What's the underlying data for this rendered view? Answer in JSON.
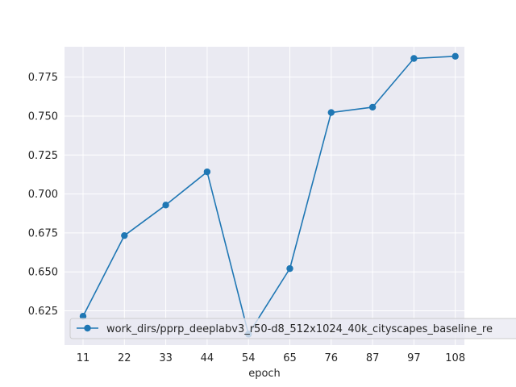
{
  "chart_data": {
    "type": "line",
    "title": "",
    "xlabel": "epoch",
    "ylabel": "",
    "x": [
      "11",
      "22",
      "33",
      "44",
      "54",
      "65",
      "76",
      "87",
      "97",
      "108"
    ],
    "ylim": [
      0.603,
      0.7945
    ],
    "yticks": [
      0.625,
      0.65,
      0.675,
      0.7,
      0.725,
      0.75,
      0.775
    ],
    "ytick_labels": [
      "0.625",
      "0.650",
      "0.675",
      "0.700",
      "0.725",
      "0.750",
      "0.775"
    ],
    "grid": true,
    "legend_position": "lower-left",
    "series": [
      {
        "name": "work_dirs/pprp_deeplabv3_r50-d8_512x1024_40k_cityscapes_baseline_re",
        "color": "#1f77b4",
        "marker": "circle",
        "values": [
          0.6215,
          0.6733,
          0.6929,
          0.7142,
          0.61,
          0.6521,
          0.7523,
          0.7557,
          0.787,
          0.7884
        ]
      }
    ],
    "colors": {
      "plot_background": "#eaeaf2",
      "grid": "#ffffff",
      "text": "#262626"
    }
  }
}
